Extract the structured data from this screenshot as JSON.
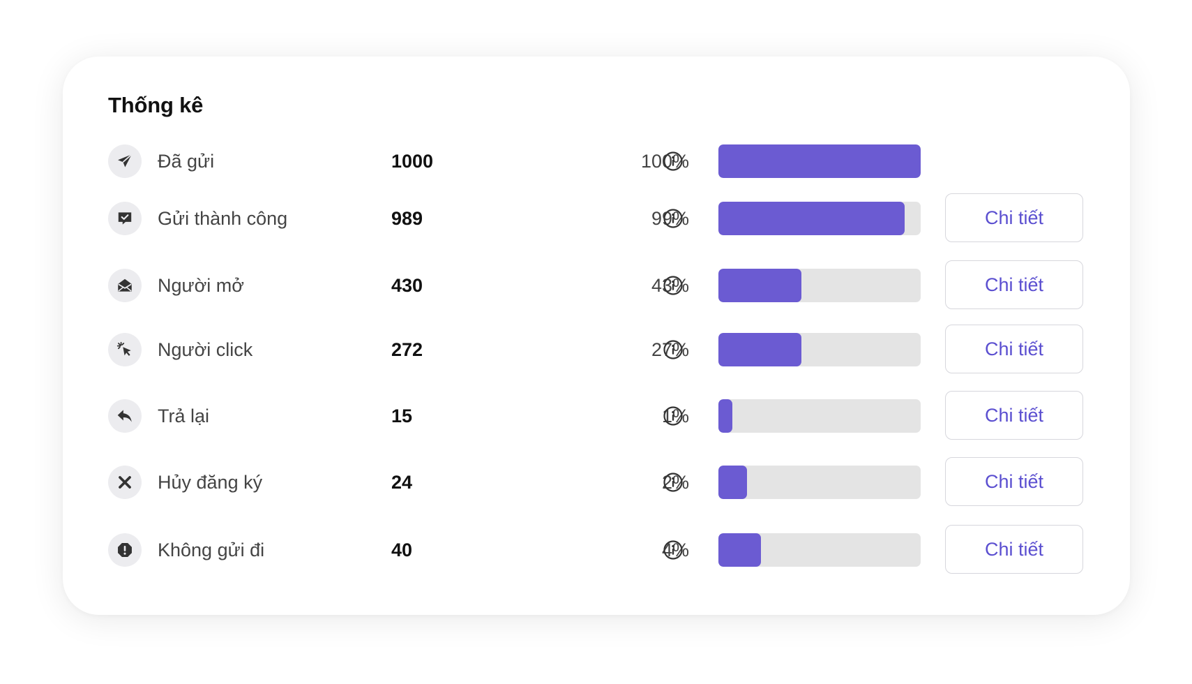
{
  "title": "Thống kê",
  "colors": {
    "bar_fill": "#6b5bd2",
    "bar_track": "#e4e4e4",
    "button_text": "#5b4fd0",
    "icon_bg": "#ececef",
    "icon_fg": "#333333"
  },
  "rows": [
    {
      "icon": "send-icon",
      "label": "Đã gửi",
      "count": "1000",
      "percent": "100%",
      "progress": 1.0,
      "detail_label": ""
    },
    {
      "icon": "message-check-icon",
      "label": "Gửi thành công",
      "count": "989",
      "percent": "99%",
      "progress": 0.92,
      "detail_label": "Chi tiết"
    },
    {
      "icon": "open-envelope-icon",
      "label": "Người mở",
      "count": "430",
      "percent": "43%",
      "progress": 0.41,
      "detail_label": "Chi tiết"
    },
    {
      "icon": "cursor-click-icon",
      "label": "Người click",
      "count": "272",
      "percent": "27%",
      "progress": 0.41,
      "detail_label": "Chi tiết"
    },
    {
      "icon": "reply-icon",
      "label": "Trả lại",
      "count": "15",
      "percent": "1%",
      "progress": 0.07,
      "detail_label": "Chi tiết"
    },
    {
      "icon": "close-icon",
      "label": "Hủy đăng ký",
      "count": "24",
      "percent": "2%",
      "progress": 0.14,
      "detail_label": "Chi tiết"
    },
    {
      "icon": "alert-icon",
      "label": "Không gửi đi",
      "count": "40",
      "percent": "4%",
      "progress": 0.21,
      "detail_label": "Chi tiết"
    }
  ]
}
